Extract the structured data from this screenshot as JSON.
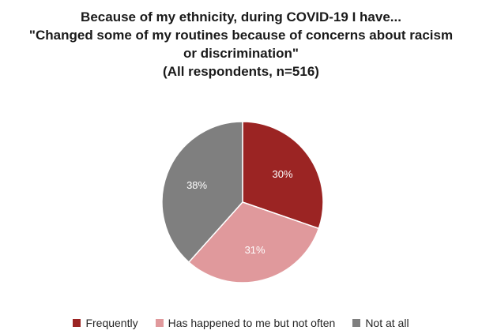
{
  "chart_data": {
    "type": "pie",
    "title": [
      "Because of my ethnicity, during COVID-19 I have...",
      "\"Changed some of my routines because of concerns about racism",
      "or discrimination\"",
      "(All respondents, n=516)"
    ],
    "categories": [
      "Frequently",
      "Has happened to me but not often",
      "Not at all"
    ],
    "values": [
      30,
      31,
      38
    ],
    "data_labels": [
      "30%",
      "31%",
      "38%"
    ],
    "colors": [
      "#9b2423",
      "#e0999c",
      "#7f7f7f"
    ],
    "start_angle_deg": 0,
    "direction": "clockwise",
    "legend_position": "bottom"
  }
}
